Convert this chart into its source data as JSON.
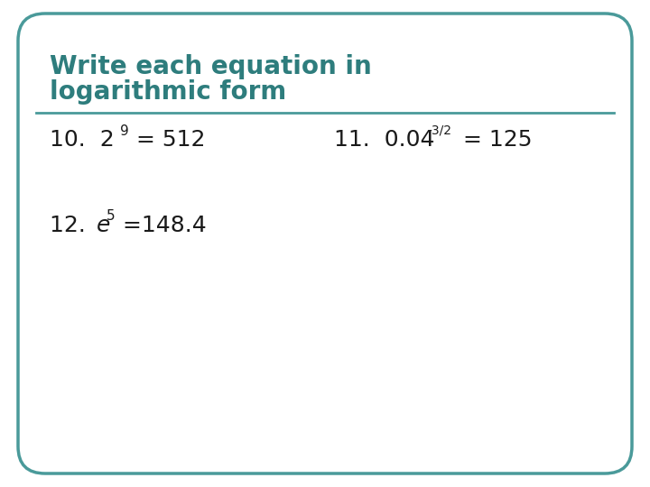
{
  "title_line1": "Write each equation in",
  "title_line2": "logarithmic form",
  "title_color": "#2e7d7d",
  "background_color": "#ffffff",
  "border_color": "#4a9a9a",
  "line_color": "#4a9a9a",
  "text_color": "#1a1a1a",
  "figsize": [
    7.2,
    5.4
  ],
  "dpi": 100,
  "title_fontsize": 20,
  "item_fontsize": 18,
  "sup_fontsize": 11
}
